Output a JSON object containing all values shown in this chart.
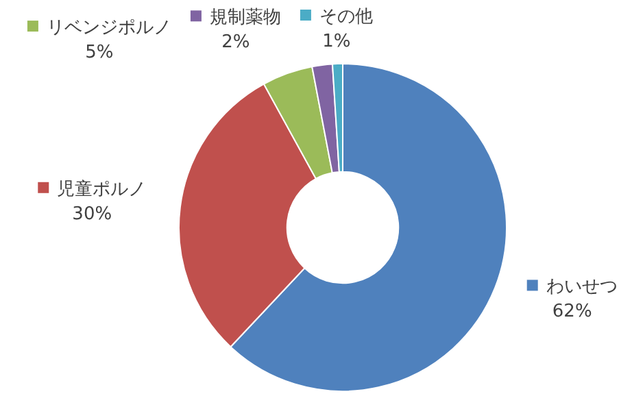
{
  "chart_data": {
    "type": "donut",
    "categories": [
      "わいせつ",
      "児童ポルノ",
      "リベンジポルノ",
      "規制薬物",
      "その他"
    ],
    "values": [
      62,
      30,
      5,
      2,
      1
    ],
    "colors": [
      "#4f81bd",
      "#c0504d",
      "#9bbb59",
      "#8064a2",
      "#4bacc6"
    ],
    "value_labels": [
      "62%",
      "30%",
      "5%",
      "2%",
      "1%"
    ],
    "legend": "top"
  }
}
